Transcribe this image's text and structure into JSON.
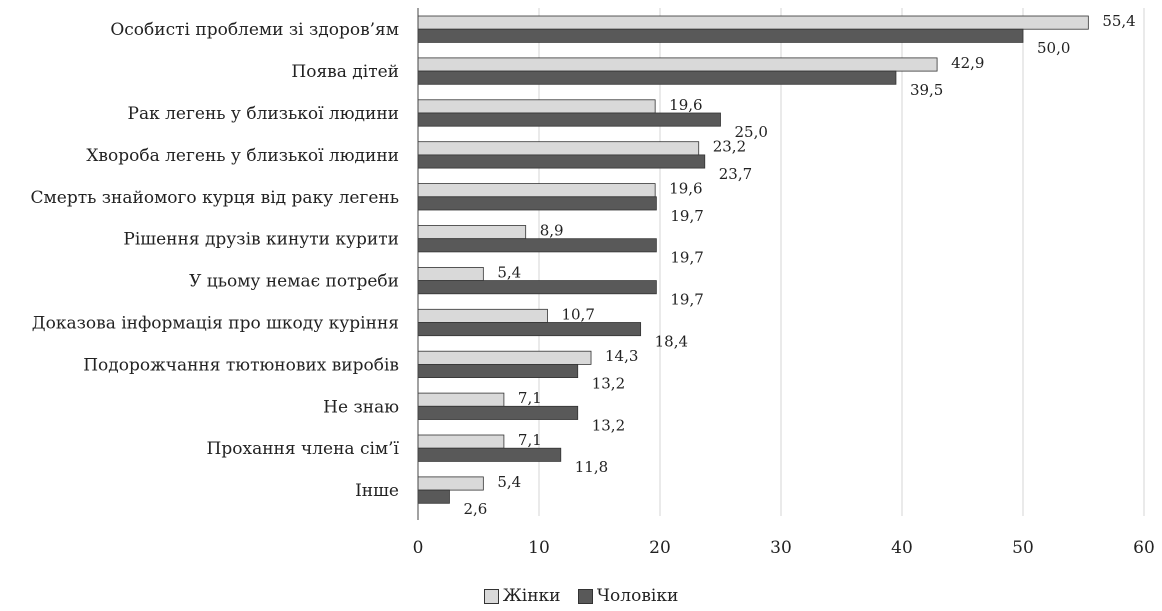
{
  "chart_data": {
    "type": "bar",
    "orientation": "horizontal",
    "categories": [
      "Особисті  проблеми зі здоров’ям",
      "Поява дітей",
      "Рак легень у близької людини",
      "Хвороба легень у близької людини",
      "Смерть знайомого курця від раку легень",
      "Рішення друзів кинути курити",
      "У цьому немає потреби",
      "Доказова інформація про шкоду куріння",
      "Подорожчання тютюнових виробів",
      "Не знаю",
      "Прохання члена сім’ї",
      "Інше"
    ],
    "series": [
      {
        "name": "Жінки",
        "color": "#d9d9d9",
        "values": [
          55.4,
          42.9,
          19.6,
          23.2,
          19.6,
          8.9,
          5.4,
          10.7,
          14.3,
          7.1,
          7.1,
          5.4
        ],
        "labels": [
          "55,4",
          "42,9",
          "19,6",
          "23,2",
          "19,6",
          "8,9",
          "5,4",
          "10,7",
          "14,3",
          "7,1",
          "7,1",
          "5,4"
        ]
      },
      {
        "name": "Чоловіки",
        "color": "#595959",
        "values": [
          50.0,
          39.5,
          25.0,
          23.7,
          19.7,
          19.7,
          19.7,
          18.4,
          13.2,
          13.2,
          11.8,
          2.6
        ],
        "labels": [
          "50,0",
          "39,5",
          "25,0",
          "23,7",
          "19,7",
          "19,7",
          "19,7",
          "18,4",
          "13,2",
          "13,2",
          "11,8",
          "2,6"
        ]
      }
    ],
    "xlim": [
      0,
      60
    ],
    "xticks": [
      0,
      10,
      20,
      30,
      40,
      50,
      60
    ],
    "xtick_labels": [
      "0",
      "10",
      "20",
      "30",
      "40",
      "50",
      "60"
    ],
    "grid": true,
    "legend_position": "bottom-center",
    "title": "",
    "xlabel": "",
    "ylabel": ""
  },
  "legend": {
    "women_label": "Жінки",
    "men_label": "Чоловіки"
  }
}
